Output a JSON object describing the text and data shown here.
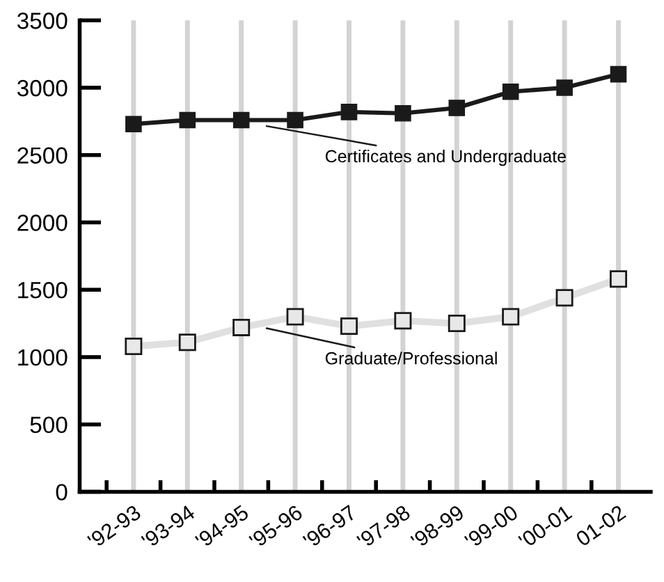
{
  "chart_data": {
    "type": "line",
    "categories": [
      "'92-93",
      "'93-94",
      "'94-95",
      "'95-96",
      "'96-97",
      "'97-98",
      "'98-99",
      "'99-00",
      "'00-01",
      "01-02"
    ],
    "series": [
      {
        "name": "Certificates and Undergraduate",
        "color": "#1a1a1a",
        "values": [
          2730,
          2760,
          2760,
          2760,
          2820,
          2810,
          2850,
          2970,
          3000,
          3100
        ]
      },
      {
        "name": "Graduate/Professional",
        "color": "#e0e0e0",
        "values": [
          1080,
          1110,
          1220,
          1300,
          1230,
          1270,
          1250,
          1300,
          1440,
          1580
        ]
      }
    ],
    "ylim": [
      0,
      3500
    ],
    "yticks": [
      0,
      500,
      1000,
      1500,
      2000,
      2500,
      3000,
      3500
    ],
    "grid": "x",
    "legend": false,
    "marker": "square",
    "line_style": "solid"
  }
}
